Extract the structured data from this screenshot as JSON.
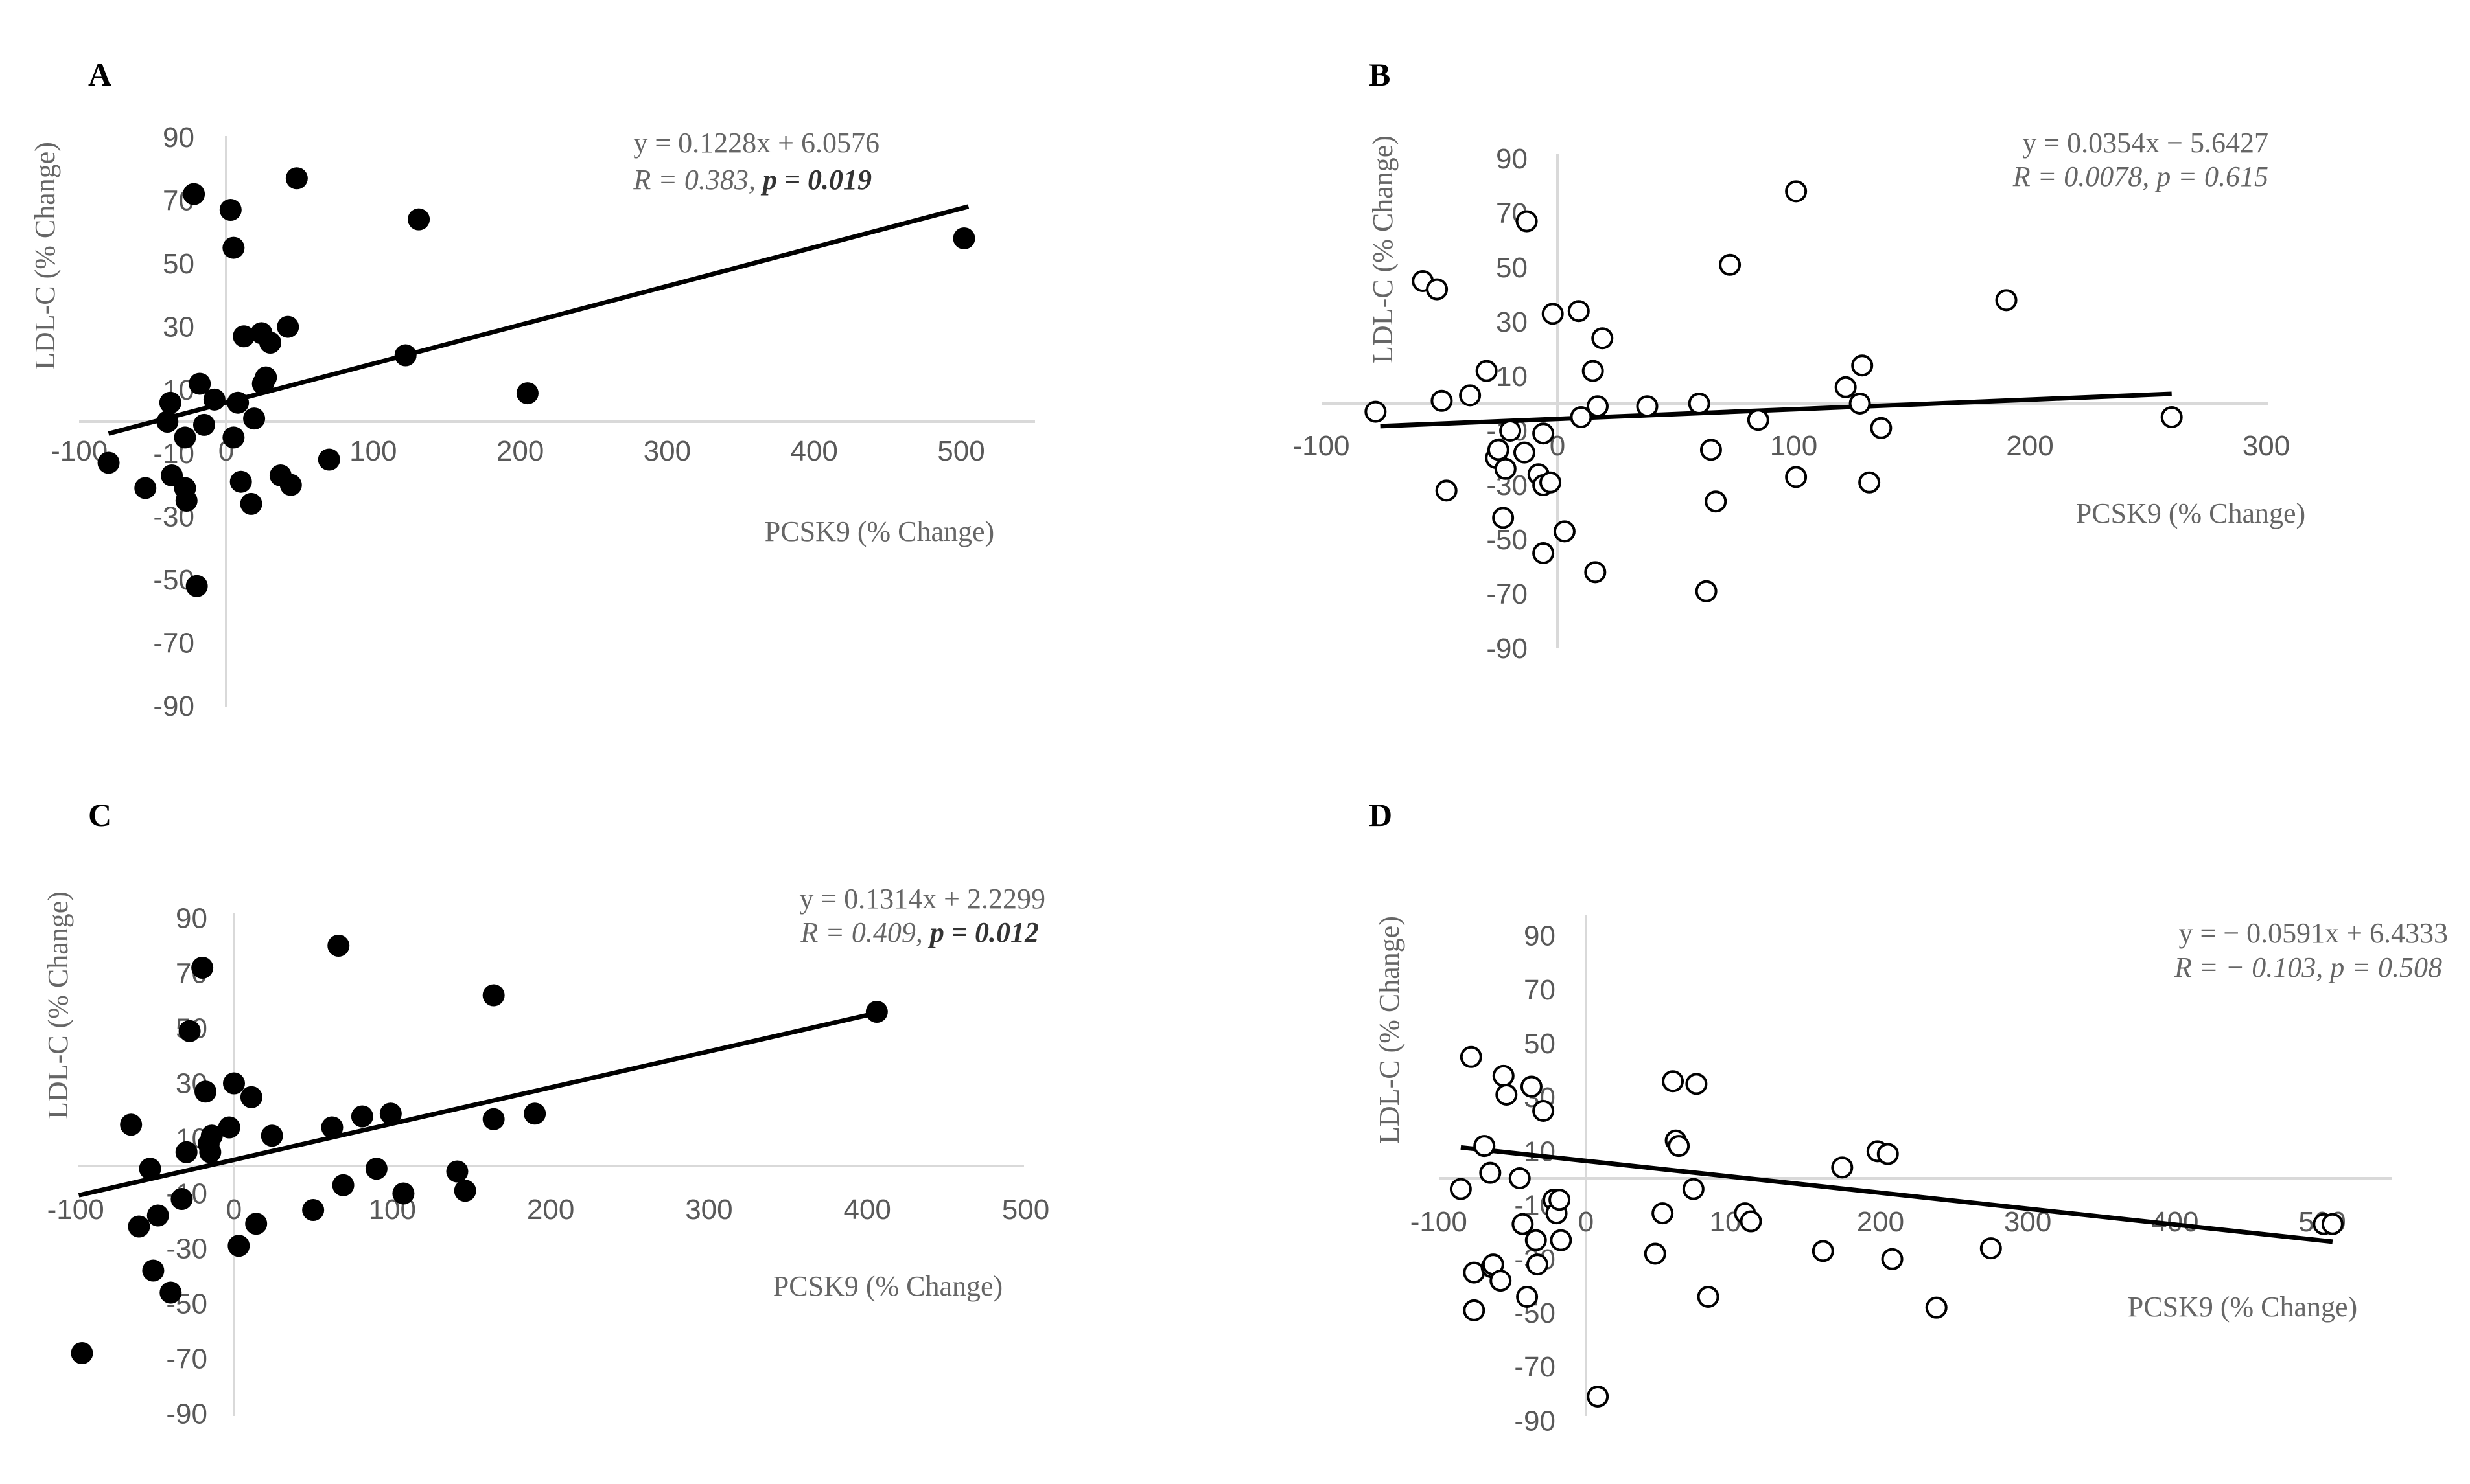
{
  "chart_data": [
    {
      "type": "scatter",
      "panel": "A",
      "marker": "filled",
      "xlabel": "PCSK9 (% Change)",
      "ylabel": "LDL-C (% Change)",
      "xlim": [
        -100,
        550
      ],
      "ylim": [
        -90,
        90
      ],
      "xticks": [
        -100,
        0,
        100,
        200,
        300,
        400,
        500
      ],
      "yticks": [
        -90,
        -70,
        -50,
        -30,
        -10,
        10,
        30,
        50,
        70,
        90
      ],
      "equation": "y = 0.1228x + 6.0576",
      "stat_r": "R = 0.383, ",
      "stat_p": "p = 0.019",
      "p_bold": true,
      "trend": {
        "slope": 0.1228,
        "intercept": 6.0576,
        "x_range": [
          -80,
          505
        ]
      },
      "points": [
        {
          "x": -80,
          "y": -13
        },
        {
          "x": -55,
          "y": -21
        },
        {
          "x": -40,
          "y": 0
        },
        {
          "x": -38,
          "y": 6
        },
        {
          "x": -37,
          "y": -17
        },
        {
          "x": -28,
          "y": -5
        },
        {
          "x": -28,
          "y": -21
        },
        {
          "x": -27,
          "y": -25
        },
        {
          "x": -22,
          "y": 72
        },
        {
          "x": -20,
          "y": -52
        },
        {
          "x": -18,
          "y": 12
        },
        {
          "x": -15,
          "y": -1
        },
        {
          "x": -8,
          "y": 7
        },
        {
          "x": 3,
          "y": 67
        },
        {
          "x": 5,
          "y": 55
        },
        {
          "x": 5,
          "y": -5
        },
        {
          "x": 8,
          "y": 6
        },
        {
          "x": 10,
          "y": -19
        },
        {
          "x": 12,
          "y": 27
        },
        {
          "x": 17,
          "y": -26
        },
        {
          "x": 19,
          "y": 1
        },
        {
          "x": 24,
          "y": 28
        },
        {
          "x": 25,
          "y": 12
        },
        {
          "x": 27,
          "y": 14
        },
        {
          "x": 30,
          "y": 25
        },
        {
          "x": 37,
          "y": -17
        },
        {
          "x": 42,
          "y": 30
        },
        {
          "x": 44,
          "y": -20
        },
        {
          "x": 48,
          "y": 77
        },
        {
          "x": 70,
          "y": -12
        },
        {
          "x": 122,
          "y": 21
        },
        {
          "x": 131,
          "y": 64
        },
        {
          "x": 205,
          "y": 9
        },
        {
          "x": 502,
          "y": 58
        }
      ]
    },
    {
      "type": "scatter",
      "panel": "B",
      "marker": "hollow",
      "xlabel": "PCSK9 (% Change)",
      "ylabel": "LDL-C (% Change)",
      "xlim": [
        -100,
        300
      ],
      "ylim": [
        -90,
        90
      ],
      "xticks": [
        -100,
        0,
        100,
        200,
        300
      ],
      "yticks": [
        -90,
        -70,
        -50,
        -30,
        -10,
        10,
        30,
        50,
        70,
        90
      ],
      "equation": "y = 0.0354x − 5.6427",
      "stat_r": "R = 0.0078, ",
      "stat_p": "p = 0.615",
      "p_bold": false,
      "trend": {
        "slope": 0.0354,
        "intercept": -5.6427,
        "x_range": [
          -75,
          260
        ]
      },
      "points": [
        {
          "x": -77,
          "y": -3
        },
        {
          "x": -57,
          "y": 45
        },
        {
          "x": -51,
          "y": 42
        },
        {
          "x": -49,
          "y": 1
        },
        {
          "x": -47,
          "y": -32
        },
        {
          "x": -37,
          "y": 3
        },
        {
          "x": -30,
          "y": 12
        },
        {
          "x": -26,
          "y": -20
        },
        {
          "x": -25,
          "y": -17
        },
        {
          "x": -23,
          "y": -42
        },
        {
          "x": -22,
          "y": -24
        },
        {
          "x": -20,
          "y": -10
        },
        {
          "x": -14,
          "y": -18
        },
        {
          "x": -13,
          "y": 67
        },
        {
          "x": -8,
          "y": -26
        },
        {
          "x": -6,
          "y": -55
        },
        {
          "x": -6,
          "y": -11
        },
        {
          "x": -6,
          "y": -30
        },
        {
          "x": -3,
          "y": -29
        },
        {
          "x": -2,
          "y": 33
        },
        {
          "x": 3,
          "y": -47
        },
        {
          "x": 9,
          "y": 34
        },
        {
          "x": 10,
          "y": -5
        },
        {
          "x": 15,
          "y": 12
        },
        {
          "x": 16,
          "y": -62
        },
        {
          "x": 17,
          "y": -1
        },
        {
          "x": 19,
          "y": 24
        },
        {
          "x": 38,
          "y": -1
        },
        {
          "x": 60,
          "y": 0
        },
        {
          "x": 63,
          "y": -69
        },
        {
          "x": 65,
          "y": -17
        },
        {
          "x": 67,
          "y": -36
        },
        {
          "x": 73,
          "y": 51
        },
        {
          "x": 85,
          "y": -6
        },
        {
          "x": 101,
          "y": 78
        },
        {
          "x": 101,
          "y": -27
        },
        {
          "x": 122,
          "y": 6
        },
        {
          "x": 128,
          "y": 0
        },
        {
          "x": 129,
          "y": 14
        },
        {
          "x": 132,
          "y": -29
        },
        {
          "x": 137,
          "y": -9
        },
        {
          "x": 190,
          "y": 38
        },
        {
          "x": 260,
          "y": -5
        }
      ]
    },
    {
      "type": "scatter",
      "panel": "C",
      "marker": "filled",
      "xlabel": "PCSK9 (% Change)",
      "ylabel": "LDL-C (% Change)",
      "xlim": [
        -100,
        500
      ],
      "ylim": [
        -90,
        90
      ],
      "xticks": [
        -100,
        0,
        100,
        200,
        300,
        400,
        500
      ],
      "yticks": [
        -90,
        -70,
        -50,
        -30,
        -10,
        10,
        30,
        50,
        70,
        90
      ],
      "equation": "y = 0.1314x + 2.2299",
      "stat_r": "R = 0.409, ",
      "stat_p": "p = 0.012",
      "p_bold": true,
      "trend": {
        "slope": 0.1314,
        "intercept": 2.2299,
        "x_range": [
          -98,
          406
        ]
      },
      "points": [
        {
          "x": -96,
          "y": -68
        },
        {
          "x": -65,
          "y": 15
        },
        {
          "x": -60,
          "y": -22
        },
        {
          "x": -53,
          "y": -1
        },
        {
          "x": -51,
          "y": -38
        },
        {
          "x": -48,
          "y": -18
        },
        {
          "x": -40,
          "y": -46
        },
        {
          "x": -33,
          "y": -12
        },
        {
          "x": -30,
          "y": 5
        },
        {
          "x": -28,
          "y": 49
        },
        {
          "x": -20,
          "y": 72
        },
        {
          "x": -18,
          "y": 27
        },
        {
          "x": -16,
          "y": 8
        },
        {
          "x": -15,
          "y": 5
        },
        {
          "x": -14,
          "y": 11
        },
        {
          "x": -3,
          "y": 14
        },
        {
          "x": 0,
          "y": 30
        },
        {
          "x": 3,
          "y": -29
        },
        {
          "x": 11,
          "y": 25
        },
        {
          "x": 14,
          "y": -21
        },
        {
          "x": 24,
          "y": 11
        },
        {
          "x": 50,
          "y": -16
        },
        {
          "x": 62,
          "y": 14
        },
        {
          "x": 66,
          "y": 80
        },
        {
          "x": 69,
          "y": -7
        },
        {
          "x": 81,
          "y": 18
        },
        {
          "x": 90,
          "y": -1
        },
        {
          "x": 99,
          "y": 19
        },
        {
          "x": 107,
          "y": -10
        },
        {
          "x": 141,
          "y": -2
        },
        {
          "x": 146,
          "y": -9
        },
        {
          "x": 164,
          "y": 62
        },
        {
          "x": 164,
          "y": 17
        },
        {
          "x": 190,
          "y": 19
        },
        {
          "x": 406,
          "y": 56
        }
      ]
    },
    {
      "type": "scatter",
      "panel": "D",
      "marker": "hollow",
      "xlabel": "PCSK9 (% Change)",
      "ylabel": "LDL-C (% Change)",
      "xlim": [
        -100,
        550
      ],
      "ylim": [
        -90,
        90
      ],
      "xticks": [
        -100,
        0,
        100,
        200,
        300,
        400,
        500
      ],
      "yticks": [
        -90,
        -70,
        -50,
        -30,
        -10,
        10,
        30,
        50,
        70,
        90
      ],
      "equation": "y = − 0.0591x + 6.4333",
      "stat_r": "R = − 0.103, ",
      "stat_p": "p = 0.508",
      "p_bold": false,
      "trend": {
        "slope": -0.0591,
        "intercept": 6.4333,
        "x_range": [
          -85,
          507
        ]
      },
      "points": [
        {
          "x": -85,
          "y": -4
        },
        {
          "x": -78,
          "y": 45
        },
        {
          "x": -76,
          "y": -35
        },
        {
          "x": -76,
          "y": -49
        },
        {
          "x": -69,
          "y": 12
        },
        {
          "x": -65,
          "y": 2
        },
        {
          "x": -64,
          "y": -33
        },
        {
          "x": -63,
          "y": -32
        },
        {
          "x": -58,
          "y": -38
        },
        {
          "x": -56,
          "y": 38
        },
        {
          "x": -54,
          "y": 31
        },
        {
          "x": -45,
          "y": 0
        },
        {
          "x": -43,
          "y": -17
        },
        {
          "x": -40,
          "y": -44
        },
        {
          "x": -37,
          "y": 34
        },
        {
          "x": -34,
          "y": -23
        },
        {
          "x": -33,
          "y": -32
        },
        {
          "x": -29,
          "y": 25
        },
        {
          "x": -22,
          "y": -8
        },
        {
          "x": -20,
          "y": -13
        },
        {
          "x": -18,
          "y": -8
        },
        {
          "x": -17,
          "y": -23
        },
        {
          "x": 8,
          "y": -81
        },
        {
          "x": 47,
          "y": -28
        },
        {
          "x": 52,
          "y": -13
        },
        {
          "x": 59,
          "y": 36
        },
        {
          "x": 61,
          "y": 14
        },
        {
          "x": 63,
          "y": 12
        },
        {
          "x": 73,
          "y": -4
        },
        {
          "x": 75,
          "y": 35
        },
        {
          "x": 83,
          "y": -44
        },
        {
          "x": 108,
          "y": -13
        },
        {
          "x": 112,
          "y": -16
        },
        {
          "x": 161,
          "y": -27
        },
        {
          "x": 174,
          "y": 4
        },
        {
          "x": 198,
          "y": 10
        },
        {
          "x": 205,
          "y": 9
        },
        {
          "x": 208,
          "y": -30
        },
        {
          "x": 238,
          "y": -48
        },
        {
          "x": 275,
          "y": -26
        },
        {
          "x": 501,
          "y": -17
        },
        {
          "x": 507,
          "y": -17
        }
      ]
    }
  ]
}
